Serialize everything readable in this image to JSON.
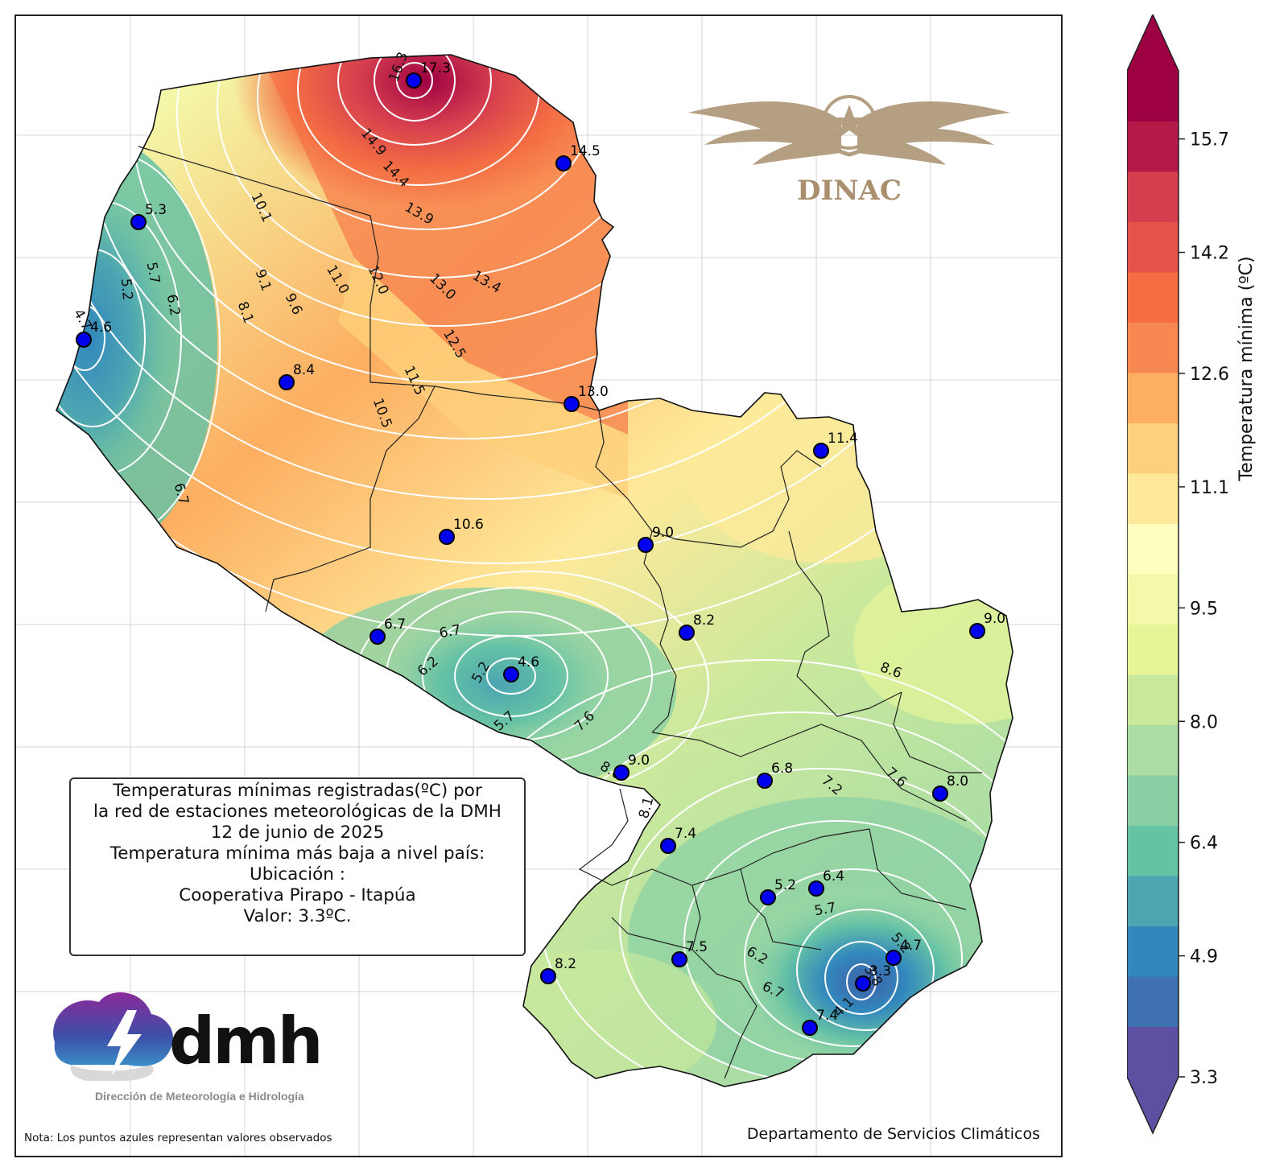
{
  "info_box": {
    "line1": "Temperaturas mínimas registradas(ºC) por",
    "line2": "la red de estaciones meteorológicas de la DMH",
    "line3": "12 de junio de 2025",
    "line4": "Temperatura mínima más baja a nivel país:",
    "line5": "Ubicación :",
    "line6": "Cooperativa Pirapo - Itapúa",
    "line7": "Valor: 3.3ºC."
  },
  "note": "Nota: Los puntos azules representan valores observados",
  "department": "Departamento de Servicios Climáticos",
  "logos": {
    "dmh_text": "dmh",
    "dmh_subtitle": "Dirección de Meteorología e Hidrología",
    "dinac_text": "DINAC"
  },
  "colorbar": {
    "title": "Temperatura mínima (ºC)",
    "ticks": [
      "15.7",
      "14.2",
      "12.6",
      "11.1",
      "9.5",
      "8.0",
      "6.4",
      "4.9",
      "3.3"
    ],
    "min": 3.3,
    "max": 16.6,
    "colors": [
      "#5e4fa2",
      "#3f70b0",
      "#3288bd",
      "#4ca5b1",
      "#66c2a5",
      "#89d0a4",
      "#abdda4",
      "#cbe99d",
      "#e6f598",
      "#f3f9a9",
      "#ffffbf",
      "#fee99a",
      "#fed07b",
      "#fdae61",
      "#f78852",
      "#f46d43",
      "#e55249",
      "#d53e4f",
      "#b31a47",
      "#9e0142"
    ]
  },
  "stations": [
    {
      "value": "17.3",
      "label": "17.3"
    },
    {
      "value": "14.5",
      "label": "14.5"
    },
    {
      "value": "5.3",
      "label": "5.3"
    },
    {
      "value": "4.6",
      "label": "4.6"
    },
    {
      "value": "8.4",
      "label": "8.4"
    },
    {
      "value": "13.0",
      "label": "13.0"
    },
    {
      "value": "11.4",
      "label": "11.4"
    },
    {
      "value": "10.6",
      "label": "10.6"
    },
    {
      "value": "9.0",
      "label": "9.0"
    },
    {
      "value": "8.2",
      "label": "8.2"
    },
    {
      "value": "9.0",
      "label": "9.0"
    },
    {
      "value": "6.7",
      "label": "6.7"
    },
    {
      "value": "4.6",
      "label": "4.6"
    },
    {
      "value": "9.0",
      "label": "9.0"
    },
    {
      "value": "6.8",
      "label": "6.8"
    },
    {
      "value": "8.0",
      "label": "8.0"
    },
    {
      "value": "7.4",
      "label": "7.4"
    },
    {
      "value": "5.2",
      "label": "5.2"
    },
    {
      "value": "6.4",
      "label": "6.4"
    },
    {
      "value": "4.7",
      "label": "4.7"
    },
    {
      "value": "3.3",
      "label": "3.3"
    },
    {
      "value": "7.5",
      "label": "7.5"
    },
    {
      "value": "8.2",
      "label": "8.2"
    },
    {
      "value": "7.4",
      "label": "7.4"
    }
  ],
  "contour_labels": [
    "16.3",
    "14.9",
    "14.4",
    "13.9",
    "13.4",
    "13.0",
    "12.5",
    "12.0",
    "11.5",
    "11.0",
    "10.5",
    "10.1",
    "9.6",
    "9.1",
    "8.1",
    "6.2",
    "5.7",
    "5.2",
    "4.7",
    "6.7",
    "6.7",
    "6.2",
    "5.2",
    "5.7",
    "7.6",
    "8.6",
    "7.2",
    "7.6",
    "8.1",
    "8.6",
    "5.7",
    "5.2",
    "6.2",
    "6.7",
    "4.1",
    "3.8"
  ]
}
